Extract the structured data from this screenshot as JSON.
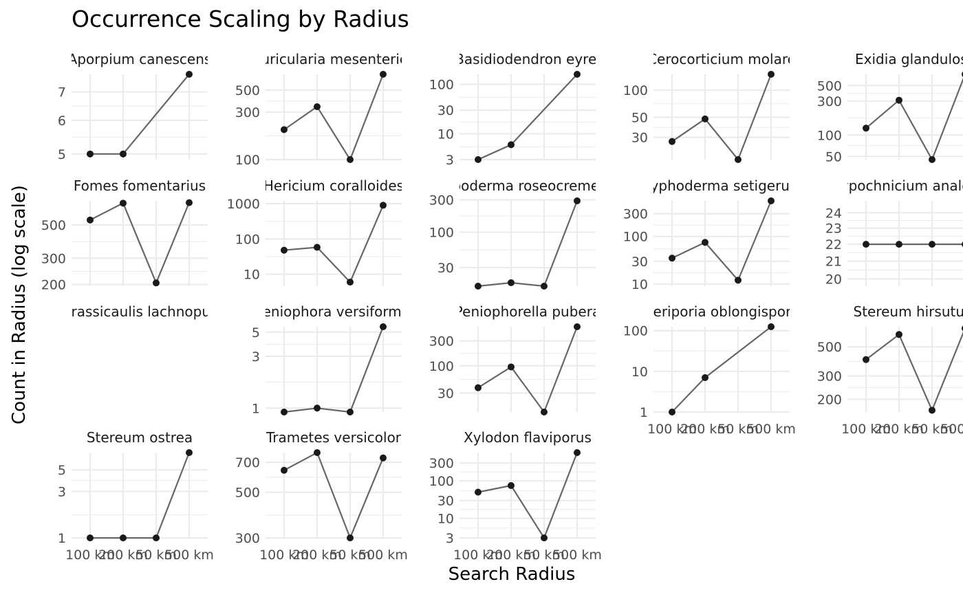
{
  "chart_data": {
    "type": "line",
    "title": "Occurrence Scaling by Radius",
    "xlabel": "Search Radius",
    "ylabel": "Count in Radius (log scale)",
    "y_scale": "log",
    "facet_scales": "free_y",
    "grid": true,
    "legend": "none",
    "categories": [
      "100 km",
      "200 km",
      "50 km",
      "500 km"
    ],
    "colors": {
      "line": "#666666",
      "point": "#1a1a1a",
      "grid": "#ebebeb"
    },
    "panels": [
      {
        "name": "Aporpium canescens",
        "values": [
          5,
          5,
          null,
          7.7
        ],
        "ylim": [
          4.85,
          7.7
        ],
        "ticks": [
          "5",
          "6",
          "7"
        ]
      },
      {
        "name": "Auricularia mesenterica",
        "values": [
          200,
          340,
          100,
          720
        ],
        "ylim": [
          100,
          720
        ],
        "ticks": [
          "100",
          "300",
          "500"
        ]
      },
      {
        "name": "Basidiodendron eyrei",
        "values": [
          3,
          6,
          null,
          160
        ],
        "ylim": [
          3,
          160
        ],
        "ticks": [
          "3",
          "10",
          "30",
          "100"
        ]
      },
      {
        "name": "Cerocorticium molare",
        "values": [
          27,
          48,
          17,
          150
        ],
        "ylim": [
          17,
          150
        ],
        "ticks": [
          "30",
          "50",
          "100"
        ]
      },
      {
        "name": "Exidia glandulosa",
        "values": [
          125,
          310,
          45,
          720
        ],
        "ylim": [
          45,
          720
        ],
        "ticks": [
          "50",
          "100",
          "300",
          "500"
        ]
      },
      {
        "name": "Fomes fomentarius",
        "values": [
          540,
          700,
          205,
          705
        ],
        "ylim": [
          195,
          725
        ],
        "ticks": [
          "200",
          "300",
          "500"
        ]
      },
      {
        "name": "Hericium coralloides",
        "values": [
          48,
          58,
          6,
          900
        ],
        "ylim": [
          4.6,
          1200
        ],
        "ticks": [
          "10",
          "100",
          "1000"
        ]
      },
      {
        "name": "Hypoderma roseocremeum",
        "values": [
          16,
          18,
          16,
          290
        ],
        "ylim": [
          16,
          290
        ],
        "ticks": [
          "30",
          "100",
          "300"
        ]
      },
      {
        "name": "Hyphoderma setigerum",
        "values": [
          35,
          75,
          12,
          560
        ],
        "ylim": [
          9,
          560
        ],
        "ticks": [
          "10",
          "30",
          "100",
          "300"
        ]
      },
      {
        "name": "Hypochnicium analogum",
        "values": [
          22,
          22,
          22,
          22
        ],
        "ylim": [
          19.6,
          24.8
        ],
        "ticks": [
          "20",
          "21",
          "22",
          "23",
          "24"
        ]
      },
      {
        "name": "Crassicaulis lachnopus",
        "values": [],
        "ylim": [
          1,
          10
        ],
        "ticks": []
      },
      {
        "name": "Peniophora versiformis",
        "values": [
          0.92,
          1,
          0.92,
          5.6
        ],
        "ylim": [
          0.92,
          5.6
        ],
        "ticks": [
          "1",
          "3",
          "5"
        ]
      },
      {
        "name": "Peniophorella pubera",
        "values": [
          38,
          95,
          13,
          560
        ],
        "ylim": [
          13,
          560
        ],
        "ticks": [
          "30",
          "100",
          "300"
        ]
      },
      {
        "name": "Ceriporia oblongispora",
        "values": [
          1,
          7,
          null,
          125
        ],
        "ylim": [
          1,
          125
        ],
        "ticks": [
          "1",
          "10",
          "100"
        ]
      },
      {
        "name": "Stereum hirsutum",
        "values": [
          400,
          620,
          165,
          690
        ],
        "ylim": [
          160,
          710
        ],
        "ticks": [
          "200",
          "300",
          "500"
        ]
      },
      {
        "name": "Stereum ostrea",
        "values": [
          1,
          1,
          1,
          7.5
        ],
        "ylim": [
          1,
          7.5
        ],
        "ticks": [
          "1",
          "3",
          "5"
        ]
      },
      {
        "name": "Trametes versicolor",
        "values": [
          640,
          780,
          300,
          735
        ],
        "ylim": [
          300,
          780
        ],
        "ticks": [
          "300",
          "500",
          "700"
        ]
      },
      {
        "name": "Xylodon flaviporus",
        "values": [
          50,
          75,
          3,
          570
        ],
        "ylim": [
          3,
          570
        ],
        "ticks": [
          "3",
          "10",
          "30",
          "100",
          "300"
        ]
      }
    ],
    "x_tick_rows": [
      1,
      3
    ],
    "x_tick_panels": [
      13,
      14,
      15,
      16,
      17
    ]
  }
}
